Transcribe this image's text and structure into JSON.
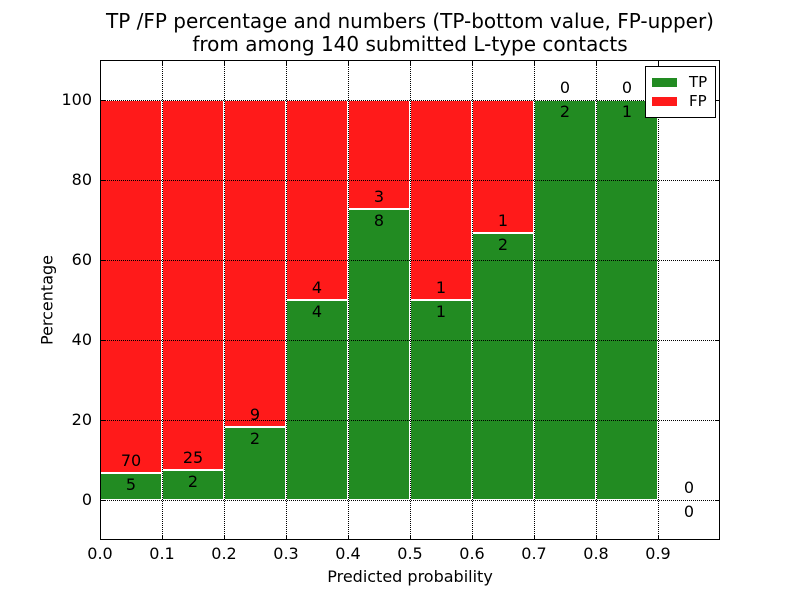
{
  "chart_data": {
    "type": "bar",
    "stacked": true,
    "normalized": "percent",
    "title_lines": [
      "TP /FP percentage and numbers (TP-bottom value, FP-upper)",
      "from among 140 submitted L-type contacts"
    ],
    "xlabel": "Predicted probability",
    "ylabel": "Percentage",
    "total_contacts": 140,
    "bin_edges": [
      0.0,
      0.1,
      0.2,
      0.3,
      0.4,
      0.5,
      0.6,
      0.7,
      0.8,
      0.9,
      1.0
    ],
    "x_ticks": [
      0.0,
      0.1,
      0.2,
      0.3,
      0.4,
      0.5,
      0.6,
      0.7,
      0.8,
      0.9
    ],
    "x_tick_labels": [
      "0.0",
      "0.1",
      "0.2",
      "0.3",
      "0.4",
      "0.5",
      "0.6",
      "0.7",
      "0.8",
      "0.9"
    ],
    "y_ticks": [
      0,
      20,
      40,
      60,
      80,
      100
    ],
    "y_tick_labels": [
      "0",
      "20",
      "40",
      "60",
      "80",
      "100"
    ],
    "xlim": [
      0,
      1.0
    ],
    "ylim": [
      -10,
      110
    ],
    "grid": true,
    "grid_style": "dotted",
    "legend_position": "upper right",
    "series": [
      {
        "name": "TP",
        "color": "#228B22",
        "counts": [
          5,
          2,
          2,
          4,
          8,
          1,
          2,
          2,
          1,
          0
        ],
        "percentages": [
          6.67,
          7.41,
          18.18,
          50,
          72.73,
          50,
          66.67,
          100,
          100,
          0
        ]
      },
      {
        "name": "FP",
        "color": "#FF1A1A",
        "counts": [
          70,
          25,
          9,
          4,
          3,
          1,
          1,
          0,
          0,
          0
        ],
        "percentages": [
          93.33,
          92.59,
          81.82,
          50,
          27.27,
          50,
          33.33,
          0,
          0,
          0
        ]
      }
    ]
  }
}
